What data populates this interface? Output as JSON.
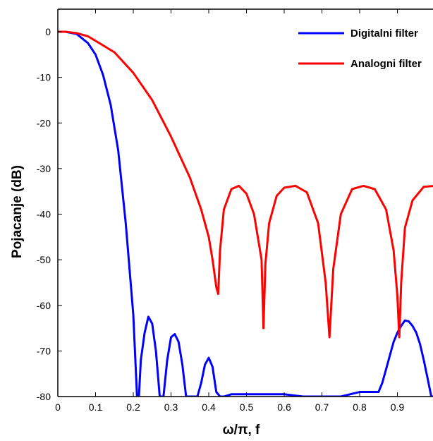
{
  "chart_data": {
    "type": "line",
    "xlabel": "ω/π, f",
    "ylabel": "Pojacanje (dB)",
    "xlim": [
      0,
      1
    ],
    "ylim": [
      -80,
      5
    ],
    "x_ticks": [
      0,
      0.1,
      0.2,
      0.3,
      0.4,
      0.5,
      0.6,
      0.7,
      0.8,
      0.9,
      1
    ],
    "x_tick_labels": [
      "0",
      "0.1",
      "0.2",
      "0.3",
      "0.4",
      "0.5",
      "0.6",
      "0.7",
      "0.8",
      "0.9",
      "1"
    ],
    "y_ticks": [
      0,
      -10,
      -20,
      -30,
      -40,
      -50,
      -60,
      -70,
      -80
    ],
    "y_tick_labels": [
      "0",
      "-10",
      "-20",
      "-30",
      "-40",
      "-50",
      "-60",
      "-70",
      "-80"
    ],
    "grid": false,
    "legend_position": "top-right",
    "series": [
      {
        "name": "Digitalni filter",
        "color": "#0000ff",
        "x": [
          0,
          0.02,
          0.05,
          0.08,
          0.1,
          0.12,
          0.14,
          0.16,
          0.18,
          0.2,
          0.21,
          0.215,
          0.22,
          0.23,
          0.24,
          0.25,
          0.26,
          0.27,
          0.28,
          0.29,
          0.3,
          0.31,
          0.32,
          0.33,
          0.34,
          0.35,
          0.36,
          0.37,
          0.38,
          0.39,
          0.4,
          0.41,
          0.42,
          0.43,
          0.44,
          0.46,
          0.5,
          0.55,
          0.6,
          0.65,
          0.7,
          0.75,
          0.8,
          0.85,
          0.86,
          0.87,
          0.88,
          0.89,
          0.9,
          0.91,
          0.92,
          0.93,
          0.94,
          0.95,
          0.96,
          0.97,
          0.98,
          0.99,
          1.0
        ],
        "y": [
          0,
          0,
          -0.5,
          -2.5,
          -5,
          -9.5,
          -16,
          -26,
          -42,
          -62,
          -80,
          -80,
          -72,
          -66,
          -62.5,
          -64,
          -70,
          -80,
          -80,
          -72,
          -67,
          -66.3,
          -68,
          -73,
          -80,
          -80,
          -80,
          -80,
          -77,
          -73,
          -71.5,
          -73.5,
          -79,
          -80,
          -80,
          -79.5,
          -79.5,
          -79.5,
          -79.5,
          -80,
          -80,
          -80,
          -79,
          -79,
          -77,
          -74,
          -71,
          -68,
          -66,
          -64.5,
          -63.3,
          -63.5,
          -64.5,
          -66,
          -68.5,
          -72,
          -76,
          -80,
          -80
        ]
      },
      {
        "name": "Analogni filter",
        "color": "#ff0000",
        "x": [
          0,
          0.02,
          0.05,
          0.08,
          0.1,
          0.15,
          0.2,
          0.25,
          0.3,
          0.35,
          0.38,
          0.4,
          0.41,
          0.42,
          0.425,
          0.43,
          0.44,
          0.46,
          0.48,
          0.5,
          0.52,
          0.54,
          0.545,
          0.55,
          0.56,
          0.58,
          0.6,
          0.63,
          0.66,
          0.69,
          0.71,
          0.72,
          0.73,
          0.75,
          0.78,
          0.81,
          0.84,
          0.87,
          0.89,
          0.9,
          0.905,
          0.91,
          0.92,
          0.94,
          0.97,
          1.0
        ],
        "y": [
          0,
          0,
          -0.3,
          -1,
          -2,
          -4.5,
          -9,
          -15,
          -23,
          -32,
          -39,
          -45,
          -50,
          -56,
          -57.5,
          -48,
          -39,
          -34.5,
          -33.8,
          -35.5,
          -40,
          -50,
          -65,
          -51,
          -42,
          -36,
          -34.2,
          -33.8,
          -35.2,
          -42,
          -55,
          -67,
          -52,
          -40,
          -34.5,
          -33.8,
          -34.5,
          -39,
          -48,
          -58,
          -67,
          -55,
          -43,
          -37,
          -34,
          -33.8
        ]
      }
    ]
  }
}
